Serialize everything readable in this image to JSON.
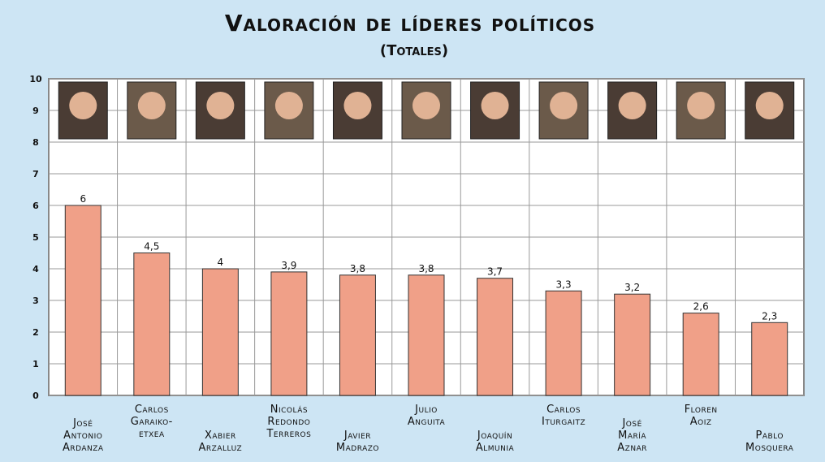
{
  "chart_data": {
    "type": "bar",
    "title": "Valoración de líderes políticos",
    "subtitle": "(Totales)",
    "categories": [
      "José\nAntonio\nArdanza",
      "Carlos\nGaraiko-\netxea",
      "Xabier\nArzalluz",
      "Nicolás\nRedondo\nTerreros",
      "Javier\nMadrazo",
      "Julio\nAnguita",
      "Joaquín\nAlmunia",
      "Carlos\nIturgaitz",
      "José\nMaría\nAznar",
      "Floren\nAoiz",
      "Pablo\nMosquera"
    ],
    "values": [
      6,
      4.5,
      4,
      3.9,
      3.8,
      3.8,
      3.7,
      3.3,
      3.2,
      2.6,
      2.3
    ],
    "value_labels": [
      "6",
      "4,5",
      "4",
      "3,9",
      "3,8",
      "3,8",
      "3,7",
      "3,3",
      "3,2",
      "2,6",
      "2,3"
    ],
    "color": "#f0a088",
    "ylim": [
      0,
      10
    ],
    "yticks": [
      0,
      1,
      2,
      3,
      4,
      5,
      6,
      7,
      8,
      9,
      10
    ],
    "grid": true
  }
}
